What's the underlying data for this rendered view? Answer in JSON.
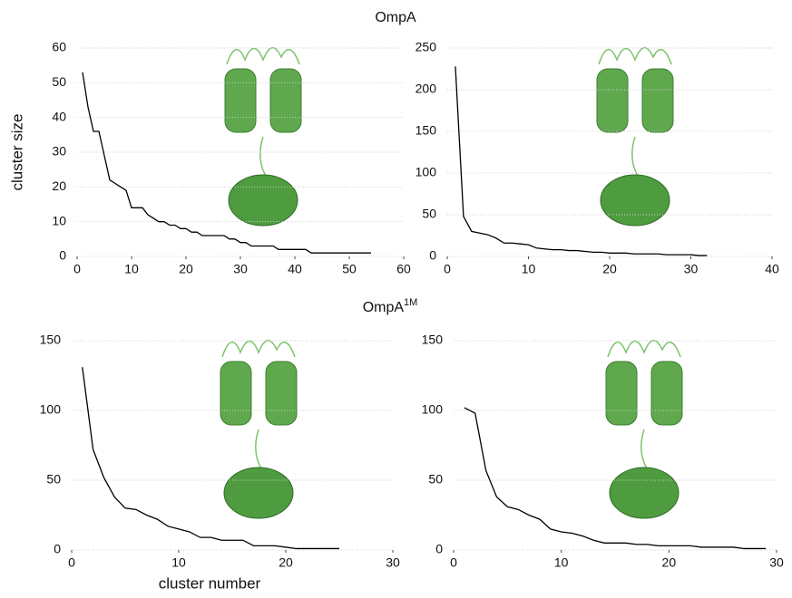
{
  "headings": [
    {
      "text": "OmpA"
    },
    {
      "text": "OmpA",
      "superscript": "1M"
    }
  ],
  "chart_data": [
    {
      "type": "line",
      "ylabel": "cluster size",
      "xlim": [
        0,
        60
      ],
      "ylim": [
        0,
        60
      ],
      "xticks": [
        0,
        10,
        20,
        30,
        40,
        50,
        60
      ],
      "yticks": [
        0,
        10,
        20,
        30,
        40,
        50,
        60
      ],
      "grid": true,
      "color": "#000000",
      "x": [
        1,
        2,
        3,
        4,
        5,
        6,
        7,
        8,
        9,
        10,
        11,
        12,
        13,
        14,
        15,
        16,
        17,
        18,
        19,
        20,
        21,
        22,
        23,
        24,
        25,
        26,
        27,
        28,
        29,
        30,
        31,
        32,
        33,
        34,
        35,
        36,
        37,
        38,
        39,
        40,
        41,
        42,
        43,
        44,
        45,
        46,
        47,
        48,
        49,
        50,
        51,
        52,
        53,
        54
      ],
      "values": [
        53,
        43,
        36,
        36,
        29,
        22,
        21,
        20,
        19,
        14,
        14,
        14,
        12,
        11,
        10,
        10,
        9,
        9,
        8,
        8,
        7,
        7,
        6,
        6,
        6,
        6,
        6,
        5,
        5,
        4,
        4,
        3,
        3,
        3,
        3,
        3,
        2,
        2,
        2,
        2,
        2,
        2,
        1,
        1,
        1,
        1,
        1,
        1,
        1,
        1,
        1,
        1,
        1,
        1
      ]
    },
    {
      "type": "line",
      "xlim": [
        0,
        40
      ],
      "ylim": [
        0,
        250
      ],
      "xticks": [
        0,
        10,
        20,
        30,
        40
      ],
      "yticks": [
        0,
        50,
        100,
        150,
        200,
        250
      ],
      "grid": true,
      "color": "#000000",
      "x": [
        1,
        2,
        3,
        4,
        5,
        6,
        7,
        8,
        9,
        10,
        11,
        12,
        13,
        14,
        15,
        16,
        17,
        18,
        19,
        20,
        21,
        22,
        23,
        24,
        25,
        26,
        27,
        28,
        29,
        30,
        31,
        32
      ],
      "values": [
        228,
        48,
        30,
        28,
        26,
        22,
        16,
        16,
        15,
        14,
        10,
        9,
        8,
        8,
        7,
        7,
        6,
        5,
        5,
        4,
        4,
        4,
        3,
        3,
        3,
        3,
        2,
        2,
        2,
        2,
        1,
        1
      ]
    },
    {
      "type": "line",
      "xlabel": "cluster number",
      "xlim": [
        0,
        30
      ],
      "ylim": [
        0,
        150
      ],
      "xticks": [
        0,
        10,
        20,
        30
      ],
      "yticks": [
        0,
        50,
        100,
        150
      ],
      "grid": true,
      "color": "#000000",
      "x": [
        1,
        2,
        3,
        4,
        5,
        6,
        7,
        8,
        9,
        10,
        11,
        12,
        13,
        14,
        15,
        16,
        17,
        18,
        19,
        20,
        21,
        22,
        23,
        24,
        25
      ],
      "values": [
        131,
        72,
        52,
        38,
        30,
        29,
        25,
        22,
        17,
        15,
        13,
        9,
        9,
        7,
        7,
        7,
        3,
        3,
        3,
        2,
        1,
        1,
        1,
        1,
        1
      ]
    },
    {
      "type": "line",
      "xlim": [
        0,
        30
      ],
      "ylim": [
        0,
        150
      ],
      "xticks": [
        0,
        10,
        20,
        30
      ],
      "yticks": [
        0,
        50,
        100,
        150
      ],
      "grid": true,
      "color": "#000000",
      "x": [
        1,
        2,
        3,
        4,
        5,
        6,
        7,
        8,
        9,
        10,
        11,
        12,
        13,
        14,
        15,
        16,
        17,
        18,
        19,
        20,
        21,
        22,
        23,
        24,
        25,
        26,
        27,
        28,
        29
      ],
      "values": [
        102,
        98,
        57,
        38,
        31,
        29,
        25,
        22,
        15,
        13,
        12,
        10,
        7,
        5,
        5,
        5,
        4,
        4,
        3,
        3,
        3,
        3,
        2,
        2,
        2,
        2,
        1,
        1,
        1
      ]
    }
  ]
}
